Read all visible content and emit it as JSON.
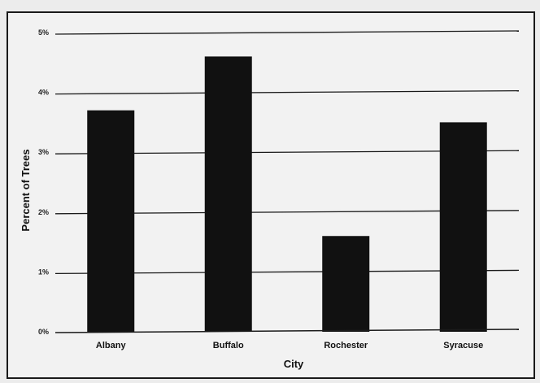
{
  "chart_data": {
    "type": "bar",
    "categories": [
      "Albany",
      "Buffalo",
      "Rochester",
      "Syracuse"
    ],
    "values": [
      3.7,
      4.6,
      1.6,
      3.5
    ],
    "ylim": [
      0,
      5
    ],
    "yticks": [
      "0%",
      "1%",
      "2%",
      "3%",
      "4%",
      "5%"
    ],
    "xlabel": "City",
    "ylabel": "Percent of Trees",
    "title": "",
    "grid": true,
    "bar_color": "#111111"
  }
}
